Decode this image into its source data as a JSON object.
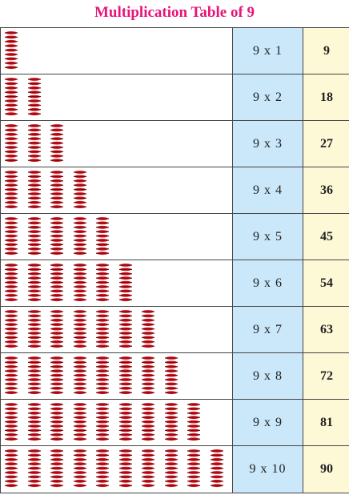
{
  "title": "Multiplication Table of 9",
  "group_icon": "stack-of-nine-red-dragonflies-icon",
  "colors": {
    "title": "#e8157a",
    "expr_bg": "#cbe7fa",
    "result_bg": "#fdf8d6",
    "insect": "#d6131f"
  },
  "rows": [
    {
      "groups": 1,
      "expr": "9 x 1",
      "result": "9"
    },
    {
      "groups": 2,
      "expr": "9 x 2",
      "result": "18"
    },
    {
      "groups": 3,
      "expr": "9 x 3",
      "result": "27"
    },
    {
      "groups": 4,
      "expr": "9 x 4",
      "result": "36"
    },
    {
      "groups": 5,
      "expr": "9 x 5",
      "result": "45"
    },
    {
      "groups": 6,
      "expr": "9 x 6",
      "result": "54"
    },
    {
      "groups": 7,
      "expr": "9 x 7",
      "result": "63"
    },
    {
      "groups": 8,
      "expr": "9 x 8",
      "result": "72"
    },
    {
      "groups": 9,
      "expr": "9 x 9",
      "result": "81"
    },
    {
      "groups": 10,
      "expr": "9 x 10",
      "result": "90"
    }
  ]
}
